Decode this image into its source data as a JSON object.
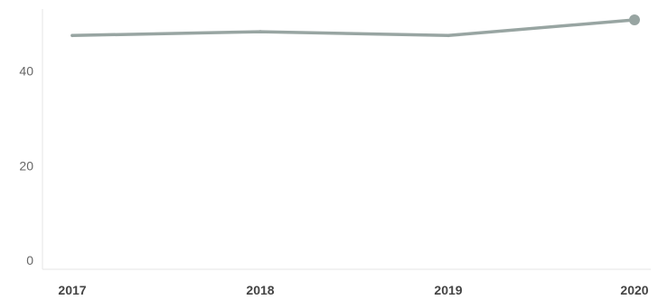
{
  "chart_data": {
    "type": "line",
    "x": [
      "2017",
      "2018",
      "2019",
      "2020"
    ],
    "series": [
      {
        "values": [
          47.5,
          48.3,
          47.5,
          50.8
        ]
      }
    ],
    "y_ticks": [
      "0",
      "20",
      "40"
    ],
    "ylim": [
      0,
      55
    ],
    "grid": false,
    "color": "#98a5a2",
    "last_point_marker": true
  }
}
